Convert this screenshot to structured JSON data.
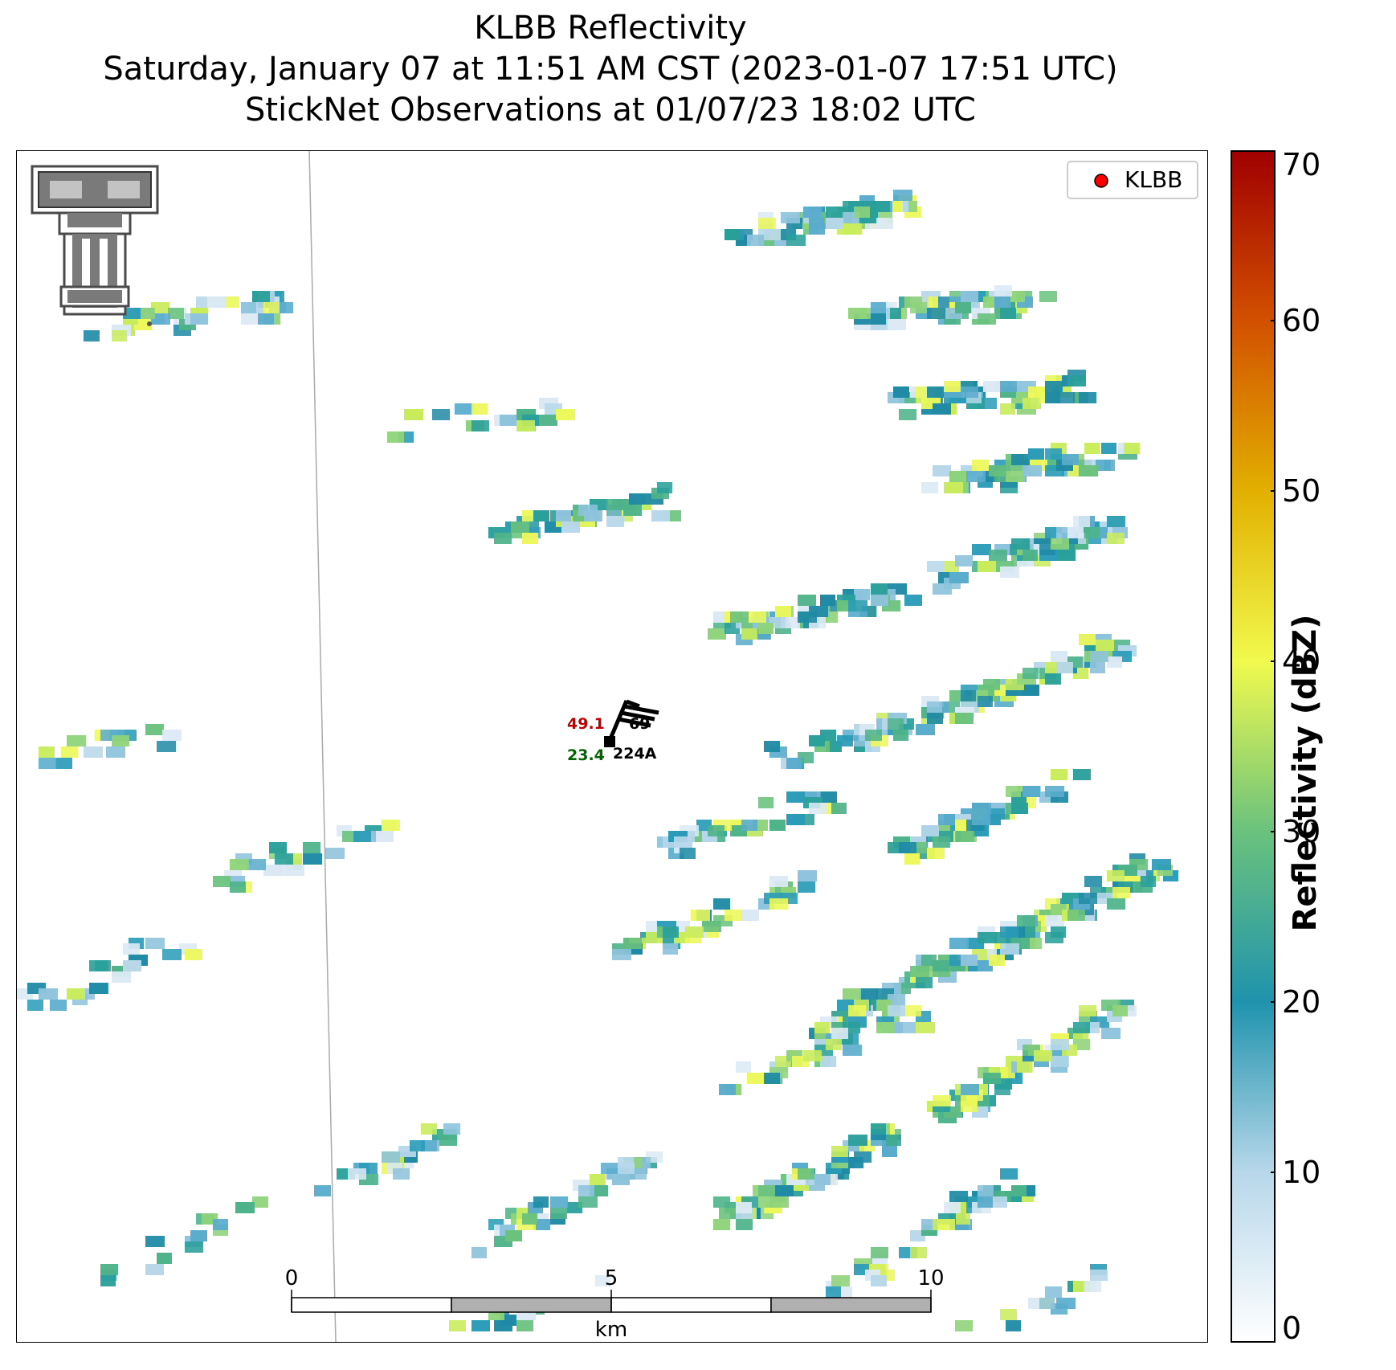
{
  "title": {
    "line1": "KLBB Reflectivity",
    "line2": "Saturday, January 07 at 11:51 AM CST (2023-01-07 17:51 UTC)",
    "line3": "StickNet Observations at 01/07/23 18:02 UTC"
  },
  "legend": {
    "label": "KLBB",
    "marker_color": "#ff0000",
    "placement": "top-right"
  },
  "station": {
    "id": "224A",
    "temperature": "49.1",
    "dewpoint": "23.4",
    "pressure": "69",
    "temperature_color": "#c00000",
    "dewpoint_color": "#006400"
  },
  "scale_bar": {
    "ticks": [
      "0",
      "5",
      "10"
    ],
    "unit": "km"
  },
  "colorbar": {
    "label": "Reflectivity (dBZ)",
    "ticks": [
      "0",
      "10",
      "20",
      "30",
      "40",
      "50",
      "60",
      "70"
    ],
    "min": 0,
    "max": 70,
    "colors": [
      "#ffffff",
      "#b7d7ea",
      "#1f93ad",
      "#6ac27d",
      "#f1fa4e",
      "#e2b000",
      "#d25000",
      "#a00000"
    ]
  },
  "logo": {
    "name": "texas-tech-double-t-logo"
  }
}
